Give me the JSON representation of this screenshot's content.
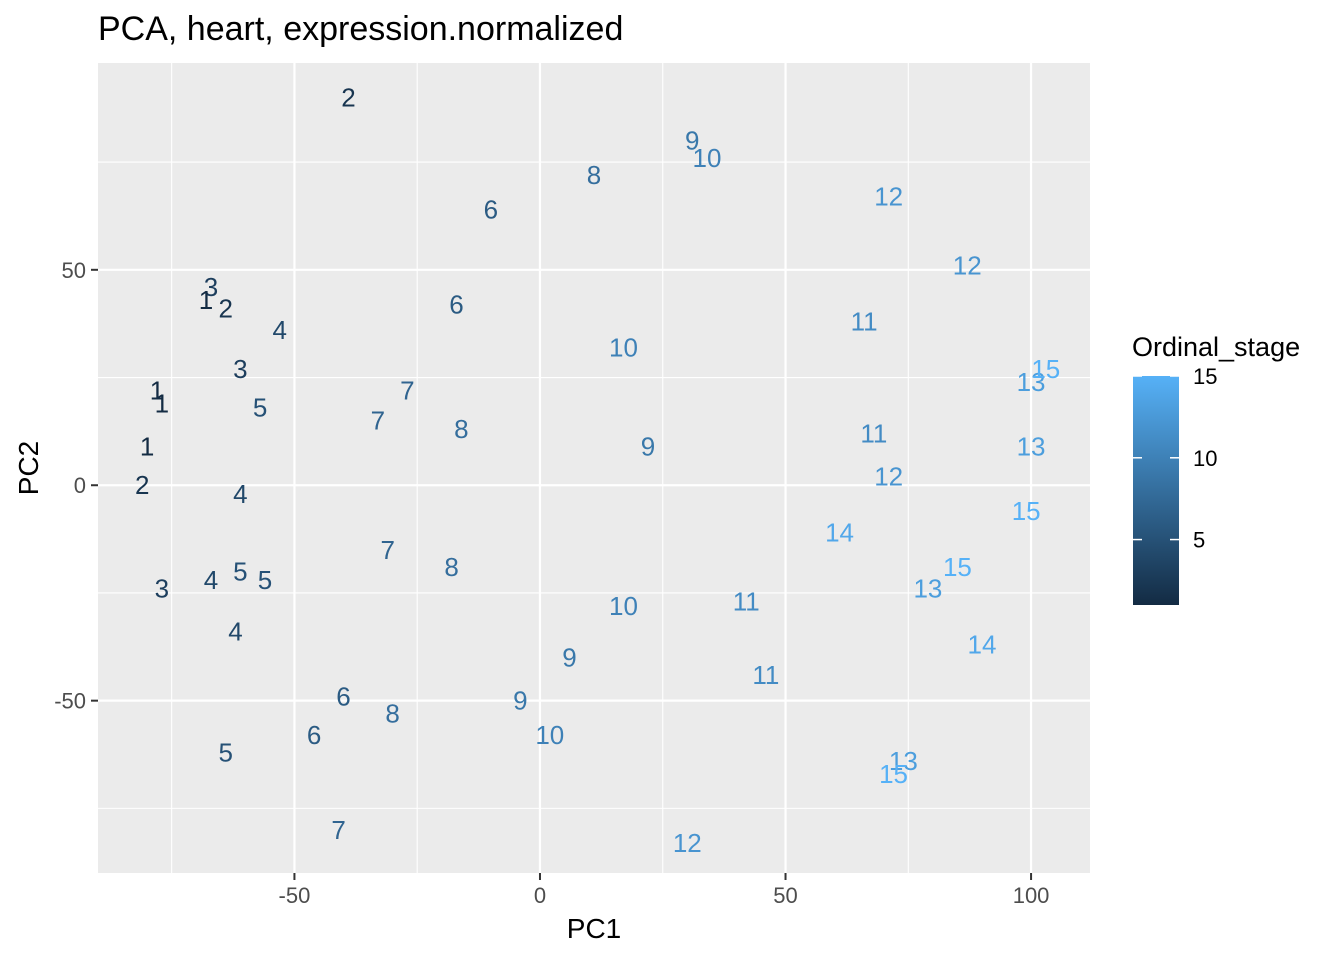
{
  "chart_data": {
    "type": "scatter",
    "title": "PCA, heart, expression.normalized",
    "xlabel": "PC1",
    "ylabel": "PC2",
    "xlim": [
      -90,
      112
    ],
    "ylim": [
      -90,
      98
    ],
    "x_ticks": [
      -50,
      0,
      50,
      100
    ],
    "y_ticks": [
      -50,
      0,
      50
    ],
    "grid": true,
    "legend": {
      "title": "Ordinal_stage",
      "position": "right",
      "breaks": [
        5,
        10,
        15
      ],
      "range": [
        1,
        15
      ],
      "color_low": "#132B43",
      "color_high": "#56B1F7"
    },
    "points": [
      {
        "x": -39,
        "y": 90,
        "label": "2"
      },
      {
        "x": -67,
        "y": 46,
        "label": "3"
      },
      {
        "x": -68,
        "y": 43,
        "label": "1"
      },
      {
        "x": -64,
        "y": 41,
        "label": "2"
      },
      {
        "x": -53,
        "y": 36,
        "label": "4"
      },
      {
        "x": -61,
        "y": 27,
        "label": "3"
      },
      {
        "x": -78,
        "y": 22,
        "label": "1"
      },
      {
        "x": -77,
        "y": 19,
        "label": "1"
      },
      {
        "x": -57,
        "y": 18,
        "label": "5"
      },
      {
        "x": -80,
        "y": 9,
        "label": "1"
      },
      {
        "x": -81,
        "y": 0,
        "label": "2"
      },
      {
        "x": -61,
        "y": -2,
        "label": "4"
      },
      {
        "x": -77,
        "y": -24,
        "label": "3"
      },
      {
        "x": -67,
        "y": -22,
        "label": "4"
      },
      {
        "x": -61,
        "y": -20,
        "label": "5"
      },
      {
        "x": -56,
        "y": -22,
        "label": "5"
      },
      {
        "x": -62,
        "y": -34,
        "label": "4"
      },
      {
        "x": -64,
        "y": -62,
        "label": "5"
      },
      {
        "x": -10,
        "y": 64,
        "label": "6"
      },
      {
        "x": -17,
        "y": 42,
        "label": "6"
      },
      {
        "x": -40,
        "y": -49,
        "label": "6"
      },
      {
        "x": -46,
        "y": -58,
        "label": "6"
      },
      {
        "x": -27,
        "y": 22,
        "label": "7"
      },
      {
        "x": -33,
        "y": 15,
        "label": "7"
      },
      {
        "x": -31,
        "y": -15,
        "label": "7"
      },
      {
        "x": -41,
        "y": -80,
        "label": "7"
      },
      {
        "x": 11,
        "y": 72,
        "label": "8"
      },
      {
        "x": -16,
        "y": 13,
        "label": "8"
      },
      {
        "x": -18,
        "y": -19,
        "label": "8"
      },
      {
        "x": -30,
        "y": -53,
        "label": "8"
      },
      {
        "x": 31,
        "y": 80,
        "label": "9"
      },
      {
        "x": 22,
        "y": 9,
        "label": "9"
      },
      {
        "x": 6,
        "y": -40,
        "label": "9"
      },
      {
        "x": -4,
        "y": -50,
        "label": "9"
      },
      {
        "x": 34,
        "y": 76,
        "label": "10"
      },
      {
        "x": 17,
        "y": 32,
        "label": "10"
      },
      {
        "x": 17,
        "y": -28,
        "label": "10"
      },
      {
        "x": 2,
        "y": -58,
        "label": "10"
      },
      {
        "x": 66,
        "y": 38,
        "label": "11"
      },
      {
        "x": 68,
        "y": 12,
        "label": "11"
      },
      {
        "x": 42,
        "y": -27,
        "label": "11"
      },
      {
        "x": 46,
        "y": -44,
        "label": "11"
      },
      {
        "x": 71,
        "y": 67,
        "label": "12"
      },
      {
        "x": 87,
        "y": 51,
        "label": "12"
      },
      {
        "x": 71,
        "y": 2,
        "label": "12"
      },
      {
        "x": 30,
        "y": -83,
        "label": "12"
      },
      {
        "x": 100,
        "y": 24,
        "label": "13"
      },
      {
        "x": 100,
        "y": 9,
        "label": "13"
      },
      {
        "x": 79,
        "y": -24,
        "label": "13"
      },
      {
        "x": 74,
        "y": -64,
        "label": "13"
      },
      {
        "x": 61,
        "y": -11,
        "label": "14"
      },
      {
        "x": 90,
        "y": -37,
        "label": "14"
      },
      {
        "x": 103,
        "y": 27,
        "label": "15"
      },
      {
        "x": 99,
        "y": -6,
        "label": "15"
      },
      {
        "x": 85,
        "y": -19,
        "label": "15"
      },
      {
        "x": 72,
        "y": -67,
        "label": "15"
      }
    ]
  }
}
